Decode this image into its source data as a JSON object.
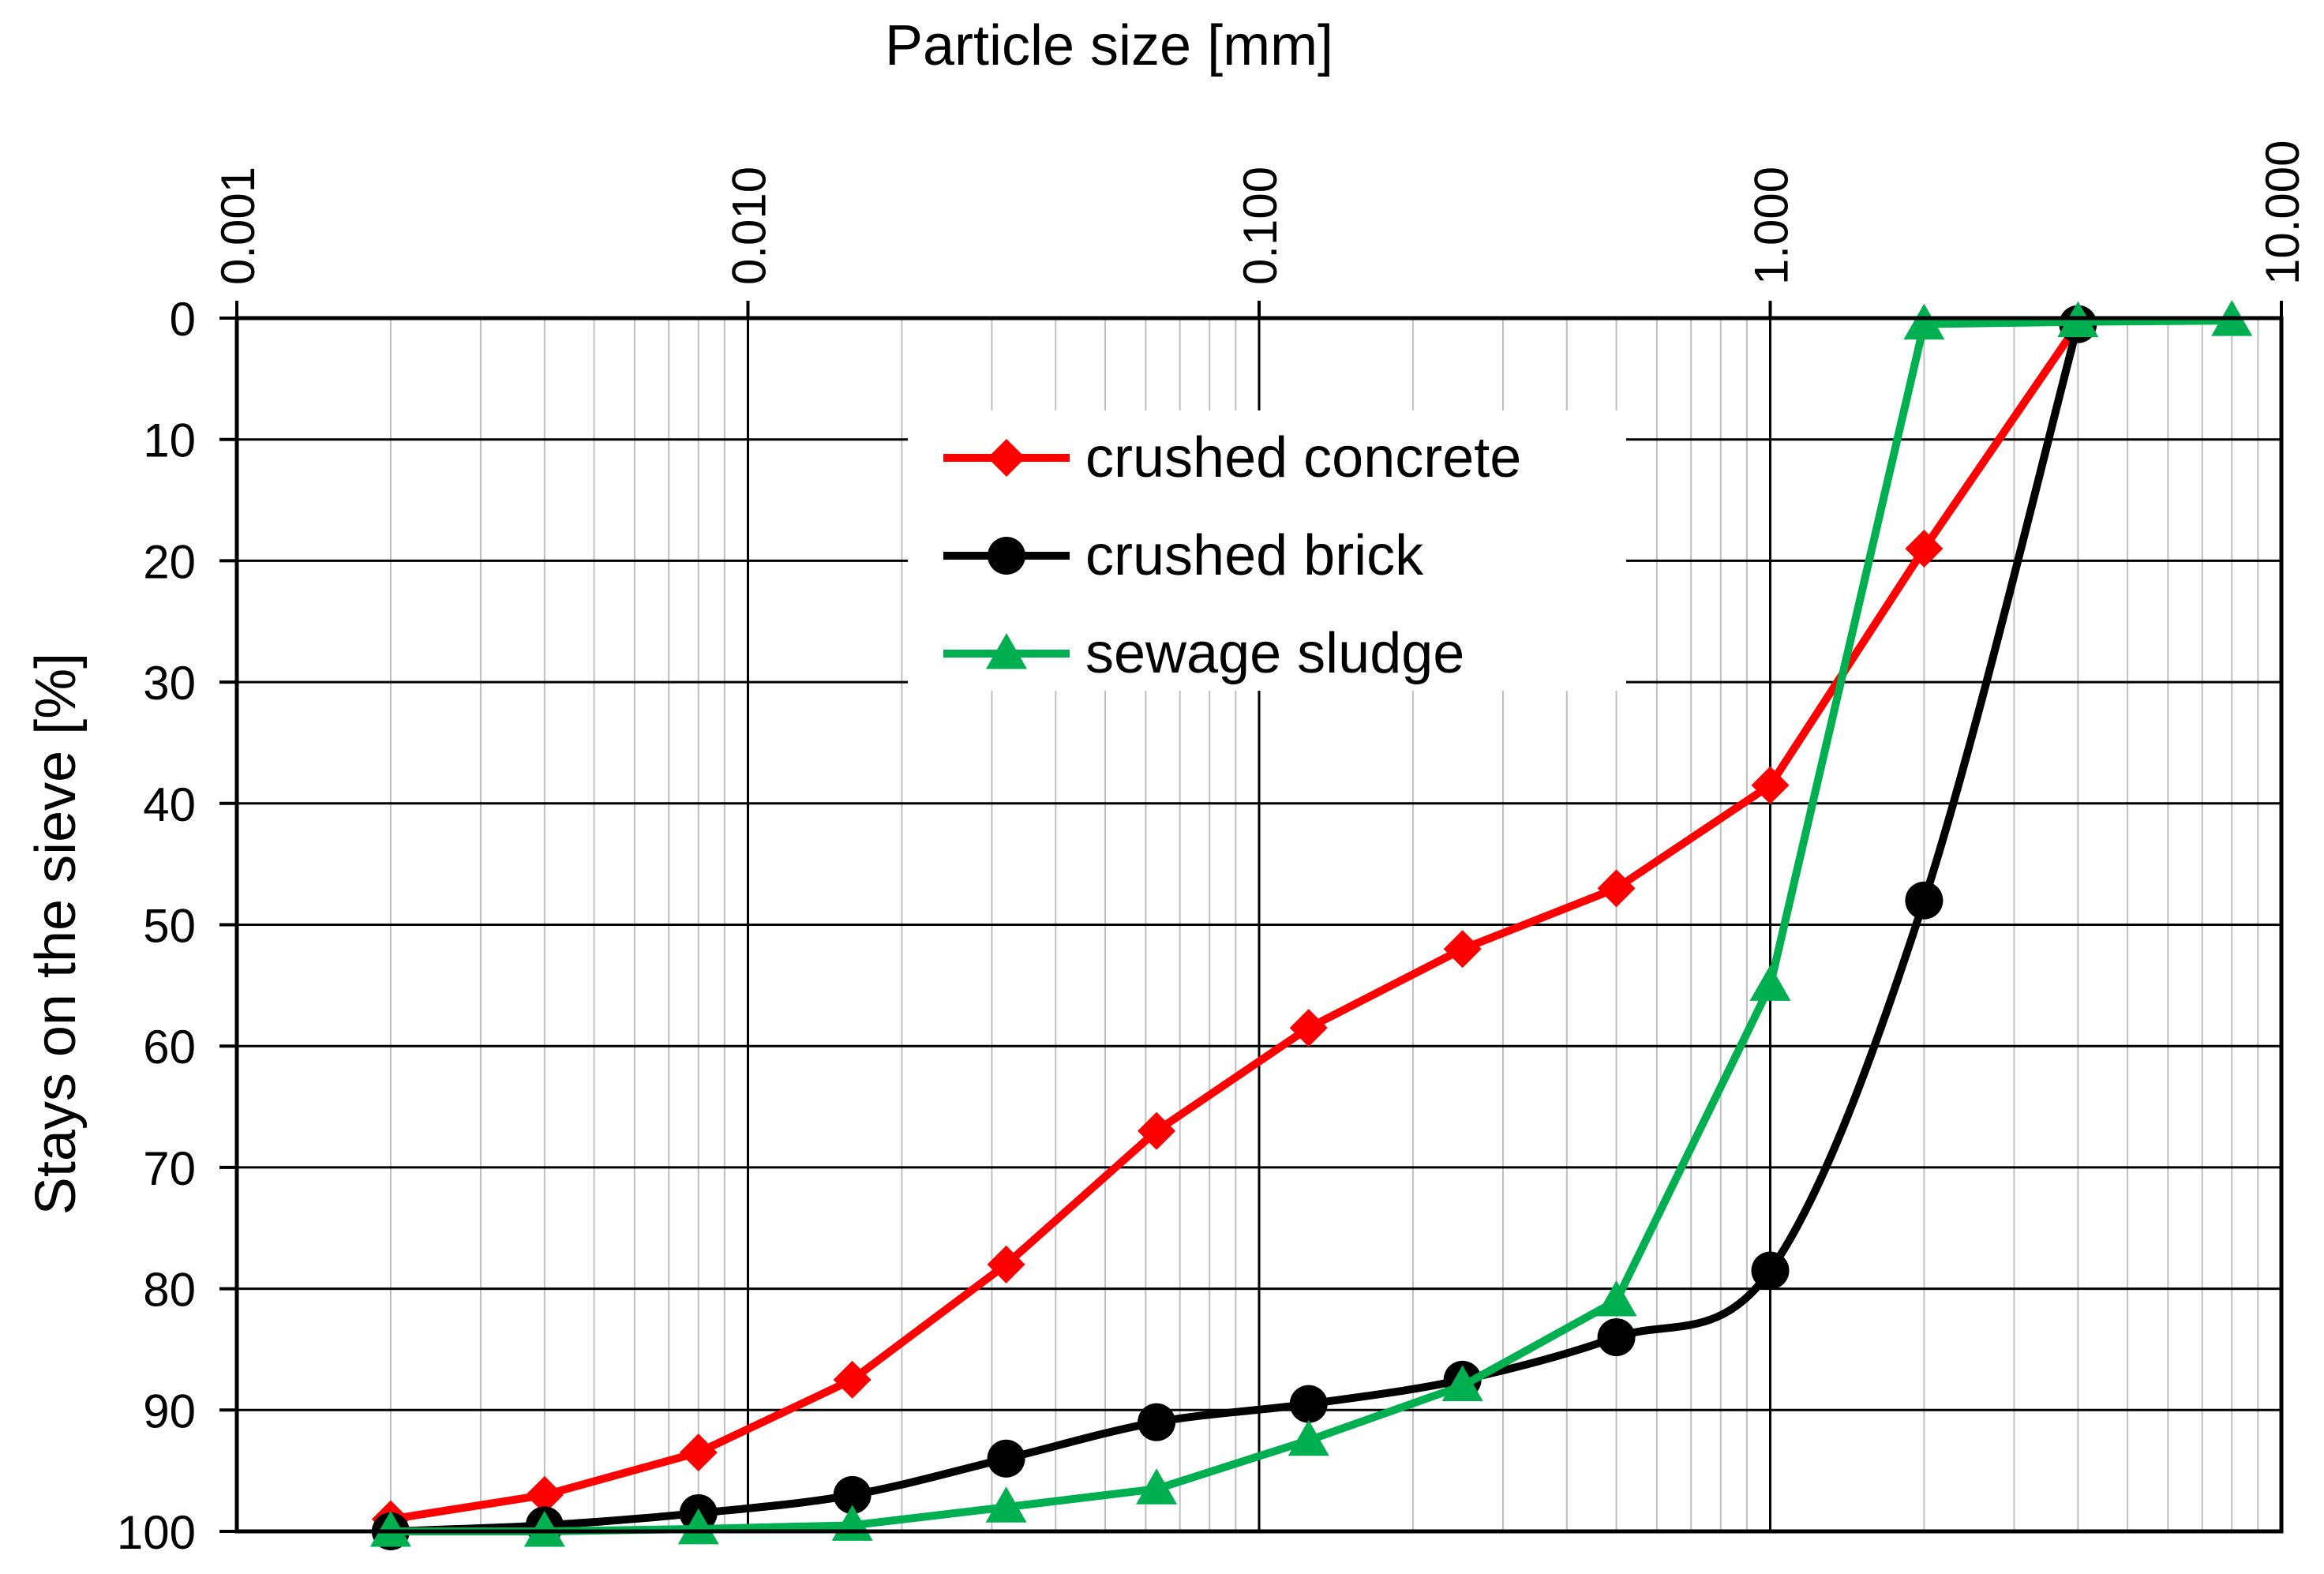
{
  "chart_data": {
    "type": "line",
    "xlabel": "Particle size [mm]",
    "ylabel": "Stays on the sieve [%]",
    "xscale": "log",
    "xlim": [
      0.001,
      10
    ],
    "ylim": [
      0,
      100
    ],
    "y_inverted": true,
    "x_axis_position": "top",
    "x_tick_labels": [
      "0.001",
      "0.010",
      "0.100",
      "1.000",
      "10.000"
    ],
    "y_tick_labels": [
      "0",
      "10",
      "20",
      "30",
      "40",
      "50",
      "60",
      "70",
      "80",
      "90",
      "100"
    ],
    "grid": true,
    "legend_position": "top-center",
    "series": [
      {
        "name": "crushed concrete",
        "color": "#ff0000",
        "marker": "diamond",
        "smooth": false,
        "x": [
          0.002,
          0.004,
          0.008,
          0.016,
          0.032,
          0.063,
          0.125,
          0.25,
          0.5,
          1,
          2,
          4
        ],
        "y": [
          99,
          97,
          93.5,
          87.5,
          78,
          67,
          58.5,
          52,
          47,
          38.5,
          19,
          0.5
        ]
      },
      {
        "name": "crushed brick",
        "color": "#000000",
        "marker": "circle",
        "smooth": true,
        "x": [
          0.002,
          0.004,
          0.008,
          0.016,
          0.032,
          0.063,
          0.125,
          0.25,
          0.5,
          1,
          2,
          4
        ],
        "y": [
          100,
          99.5,
          98.5,
          97,
          94,
          91,
          89.5,
          87.5,
          84,
          78.5,
          48,
          0.5
        ]
      },
      {
        "name": "sewage sludge",
        "color": "#00b050",
        "marker": "triangle",
        "smooth": false,
        "x": [
          0.002,
          0.004,
          0.008,
          0.016,
          0.032,
          0.063,
          0.125,
          0.25,
          0.5,
          1,
          2,
          4,
          8
        ],
        "y": [
          100,
          100,
          99.8,
          99.5,
          98,
          96.5,
          92.5,
          88,
          81,
          55,
          0.5,
          0.3,
          0.2
        ]
      }
    ]
  }
}
